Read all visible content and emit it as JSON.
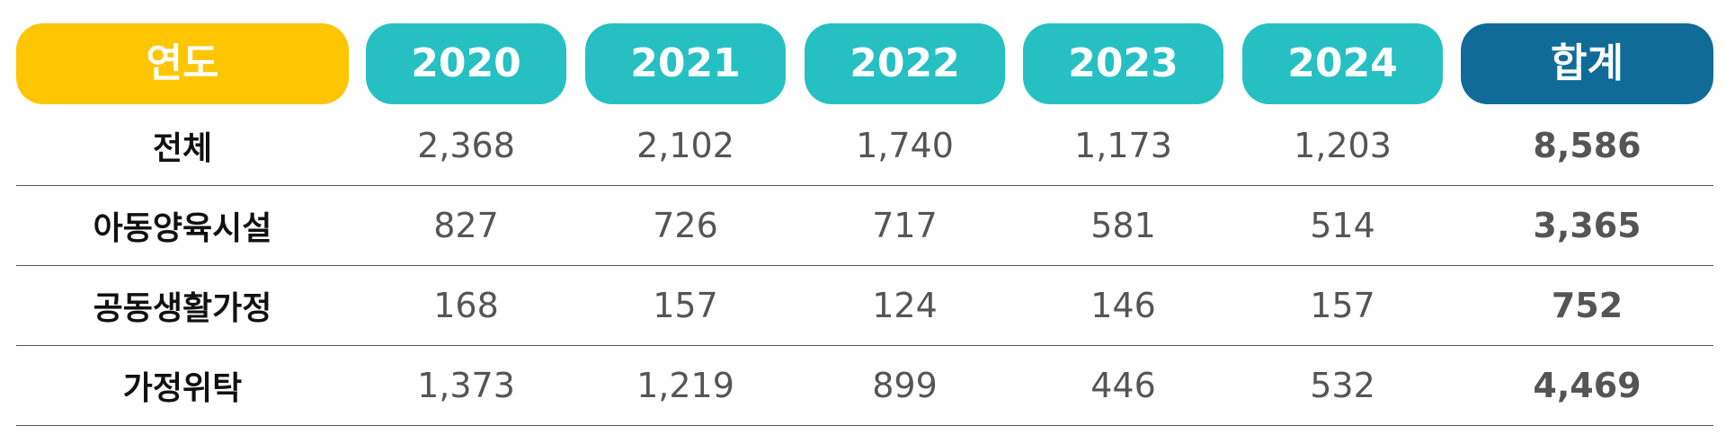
{
  "colors": {
    "label_header": "#fdc600",
    "year_header": "#26c0c3",
    "total_header": "#106b98",
    "divider": "#555555"
  },
  "header": {
    "label": "연도",
    "years": [
      "2020",
      "2021",
      "2022",
      "2023",
      "2024"
    ],
    "total": "합계"
  },
  "rows": [
    {
      "label": "전체",
      "values": [
        "2,368",
        "2,102",
        "1,740",
        "1,173",
        "1,203"
      ],
      "total": "8,586"
    },
    {
      "label": "아동양육시설",
      "values": [
        "827",
        "726",
        "717",
        "581",
        "514"
      ],
      "total": "3,365"
    },
    {
      "label": "공동생활가정",
      "values": [
        "168",
        "157",
        "124",
        "146",
        "157"
      ],
      "total": "752"
    },
    {
      "label": "가정위탁",
      "values": [
        "1,373",
        "1,219",
        "899",
        "446",
        "532"
      ],
      "total": "4,469"
    }
  ],
  "chart_data": {
    "type": "table",
    "columns": [
      "연도",
      "2020",
      "2021",
      "2022",
      "2023",
      "2024",
      "합계"
    ],
    "rows": [
      [
        "전체",
        2368,
        2102,
        1740,
        1173,
        1203,
        8586
      ],
      [
        "아동양육시설",
        827,
        726,
        717,
        581,
        514,
        3365
      ],
      [
        "공동생활가정",
        168,
        157,
        124,
        146,
        157,
        752
      ],
      [
        "가정위탁",
        1373,
        1219,
        899,
        446,
        532,
        4469
      ]
    ]
  }
}
